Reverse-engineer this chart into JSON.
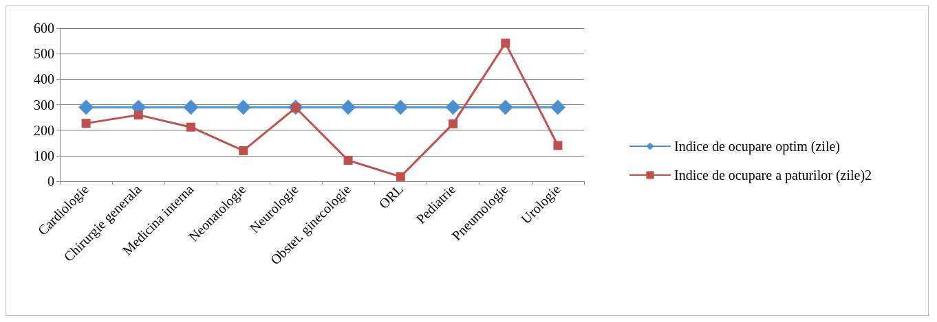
{
  "chart_data": {
    "type": "line",
    "categories": [
      "Cardiologie",
      "Chirurgie generala",
      "Medicina interna",
      "Neonatologie",
      "Neurologie",
      "Obstet. ginecologie",
      "ORL",
      "Pediatrie",
      "Pneumologie",
      "Urologie"
    ],
    "series": [
      {
        "name": "Indice de ocupare optim (zile)",
        "color": "#4a8fd0",
        "marker": "diamond",
        "values": [
          290,
          290,
          290,
          290,
          290,
          290,
          290,
          290,
          290,
          290
        ]
      },
      {
        "name": "Indice de ocupare a paturilor (zile)2",
        "color": "#c0504d",
        "marker": "square",
        "values": [
          227,
          260,
          212,
          120,
          288,
          82,
          18,
          225,
          541,
          140
        ]
      }
    ],
    "ylim": [
      0,
      600
    ],
    "yticks": [
      0,
      100,
      200,
      300,
      400,
      500,
      600
    ],
    "grid": "y",
    "legend": "right"
  }
}
